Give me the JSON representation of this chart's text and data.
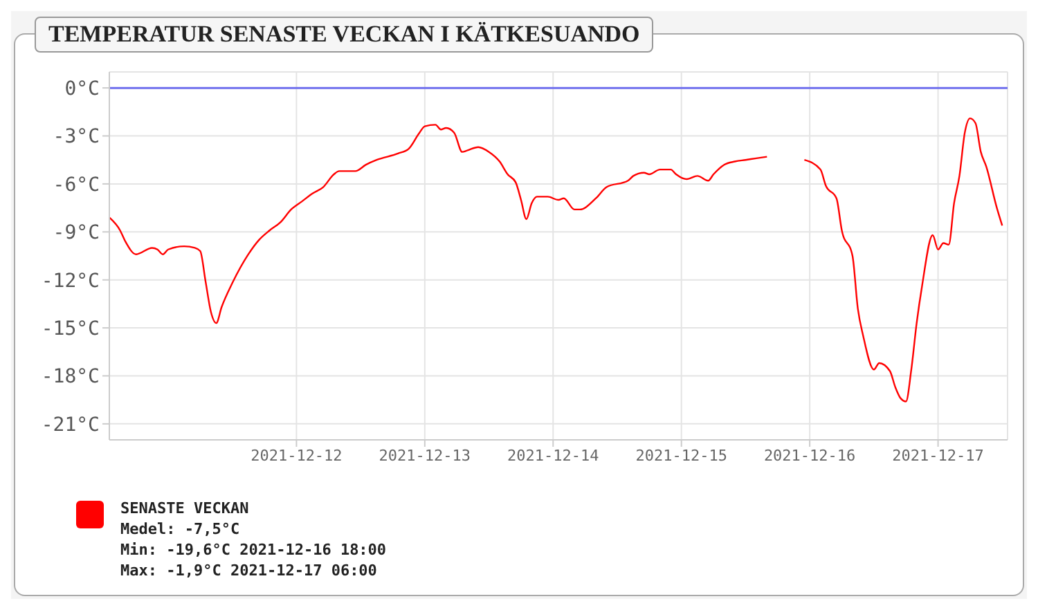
{
  "chart_data": {
    "type": "line",
    "title": "TEMPERATUR SENASTE VECKAN I KÄTKESUANDO",
    "x": [
      "2021-12-10T13:00",
      "2021-12-10T15:00",
      "2021-12-10T16:00",
      "2021-12-10T18:00",
      "2021-12-10T21:00",
      "2021-12-10T22:00",
      "2021-12-10T23:00",
      "2021-12-11T00:00",
      "2021-12-11T03:00",
      "2021-12-11T05:00",
      "2021-12-11T06:00",
      "2021-12-11T07:00",
      "2021-12-11T08:00",
      "2021-12-11T09:00",
      "2021-12-11T10:00",
      "2021-12-11T12:00",
      "2021-12-11T15:00",
      "2021-12-11T17:00",
      "2021-12-11T19:00",
      "2021-12-11T21:00",
      "2021-12-11T23:00",
      "2021-12-12T01:00",
      "2021-12-12T03:00",
      "2021-12-12T05:00",
      "2021-12-12T07:00",
      "2021-12-12T08:00",
      "2021-12-12T11:00",
      "2021-12-12T13:00",
      "2021-12-12T15:00",
      "2021-12-12T19:00",
      "2021-12-12T21:00",
      "2021-12-12T23:00",
      "2021-12-13T00:00",
      "2021-12-13T02:00",
      "2021-12-13T03:00",
      "2021-12-13T04:00",
      "2021-12-13T05:30",
      "2021-12-13T07:00",
      "2021-12-13T08:00",
      "2021-12-13T10:00",
      "2021-12-13T12:00",
      "2021-12-13T14:00",
      "2021-12-13T15:30",
      "2021-12-13T17:00",
      "2021-12-13T18:00",
      "2021-12-13T19:00",
      "2021-12-13T20:00",
      "2021-12-13T21:00",
      "2021-12-13T23:00",
      "2021-12-14T01:00",
      "2021-12-14T02:00",
      "2021-12-14T04:00",
      "2021-12-14T05:00",
      "2021-12-14T08:00",
      "2021-12-14T10:00",
      "2021-12-14T14:00",
      "2021-12-14T15:00",
      "2021-12-14T17:00",
      "2021-12-14T18:00",
      "2021-12-14T20:00",
      "2021-12-14T22:00",
      "2021-12-14T23:00",
      "2021-12-15T01:00",
      "2021-12-15T03:00",
      "2021-12-15T05:00",
      "2021-12-15T06:00",
      "2021-12-15T08:00",
      "2021-12-15T10:00",
      "2021-12-15T12:00",
      "2021-12-15T14:00",
      "2021-12-15T16:00",
      "2021-12-15T20:00",
      "2021-12-15T23:00",
      "2021-12-16T02:00",
      "2021-12-16T03:00",
      "2021-12-16T05:00",
      "2021-12-16T06:00",
      "2021-12-16T08:00",
      "2021-12-16T09:00",
      "2021-12-16T10:00",
      "2021-12-16T12:00",
      "2021-12-16T13:00",
      "2021-12-16T15:00",
      "2021-12-16T16:00",
      "2021-12-16T17:00",
      "2021-12-16T18:00",
      "2021-12-16T19:00",
      "2021-12-16T20:00",
      "2021-12-16T21:00",
      "2021-12-16T23:00",
      "2021-12-17T00:00",
      "2021-12-17T01:00",
      "2021-12-17T02:00",
      "2021-12-17T03:00",
      "2021-12-17T04:00",
      "2021-12-17T05:00",
      "2021-12-17T06:00",
      "2021-12-17T07:00",
      "2021-12-17T08:00",
      "2021-12-17T09:00",
      "2021-12-17T11:00",
      "2021-12-17T12:00"
    ],
    "series": [
      {
        "name": "SENASTE VECKAN",
        "color": "#ff0000",
        "values": [
          -8.1,
          -8.9,
          -9.6,
          -10.4,
          -10.0,
          -10.1,
          -10.4,
          -10.1,
          -9.9,
          -10.0,
          -10.2,
          -12.1,
          -14.0,
          -14.7,
          -13.7,
          -12.2,
          -10.4,
          -9.5,
          -8.9,
          -8.4,
          -7.6,
          -7.1,
          -6.6,
          -6.2,
          -5.4,
          -5.2,
          -5.2,
          -4.8,
          -4.5,
          -4.1,
          -3.8,
          -2.8,
          -2.4,
          -2.3,
          -2.6,
          -2.5,
          -2.8,
          -4.0,
          -3.9,
          -3.7,
          -4.0,
          -4.6,
          -5.4,
          -5.9,
          -7.0,
          -8.2,
          -7.2,
          -6.8,
          -6.8,
          -7.0,
          -6.9,
          -7.6,
          -7.6,
          -6.9,
          -6.2,
          -5.8,
          -5.5,
          -5.3,
          -5.4,
          -5.1,
          -5.1,
          -5.4,
          -5.7,
          -5.5,
          -5.8,
          -5.4,
          -4.8,
          -4.6,
          -4.5,
          -4.4,
          -4.3,
          null,
          -4.5,
          -5.1,
          -6.1,
          -6.9,
          -8.9,
          -10.5,
          -13.8,
          -15.5,
          -17.6,
          -17.2,
          -17.7,
          -18.7,
          -19.4,
          -19.6,
          -17.6,
          -14.7,
          -12.4,
          -9.2,
          -10.1,
          -9.7,
          -9.8,
          -7.2,
          -5.5,
          -2.8,
          -1.9,
          -2.2,
          -4.0,
          -4.9,
          -7.5,
          -8.6
        ]
      }
    ],
    "xlim": [
      "2021-12-10T13:00",
      "2021-12-17T13:00"
    ],
    "xticks": [
      "2021-12-12",
      "2021-12-13",
      "2021-12-14",
      "2021-12-15",
      "2021-12-16",
      "2021-12-17"
    ],
    "ylim": [
      -22,
      1
    ],
    "yticks": [
      {
        "value": 0,
        "label": "0°C"
      },
      {
        "value": -3,
        "label": "-3°C"
      },
      {
        "value": -6,
        "label": "-6°C"
      },
      {
        "value": -9,
        "label": "-9°C"
      },
      {
        "value": -12,
        "label": "-12°C"
      },
      {
        "value": -15,
        "label": "-15°C"
      },
      {
        "value": -18,
        "label": "-18°C"
      },
      {
        "value": -21,
        "label": "-21°C"
      }
    ],
    "ref_lines": [
      {
        "axis": "y",
        "value": 0,
        "color": "#6f6fee"
      }
    ],
    "grid": true,
    "legend": "bottom",
    "marker": "none",
    "line_style": "solid",
    "annotations": [
      "Medel: -7,5°C",
      "Min: -19,6°C 2021-12-16 18:00",
      "Max: -1,9°C 2021-12-17 06:00"
    ]
  }
}
